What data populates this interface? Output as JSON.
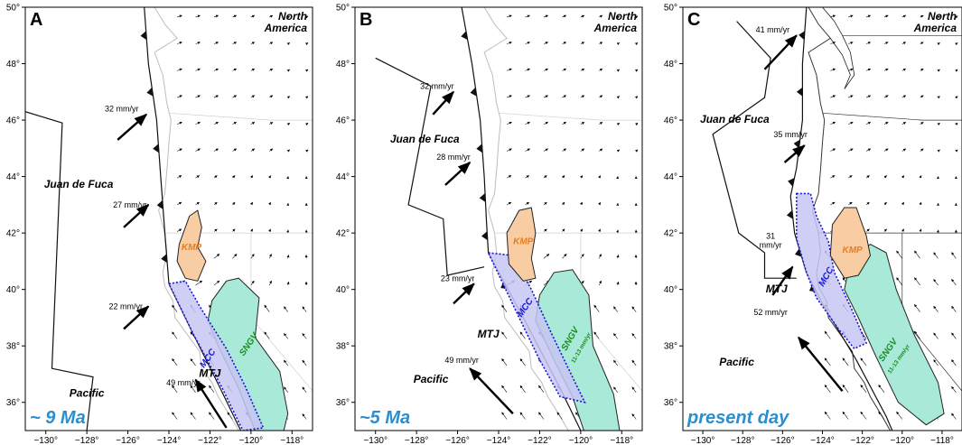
{
  "figure": {
    "axes": {
      "lon_ticks": [
        "−130°",
        "−128°",
        "−126°",
        "−124°",
        "−122°",
        "−120°",
        "−118°"
      ],
      "lat_ticks": [
        "36°",
        "38°",
        "40°",
        "42°",
        "44°",
        "46°",
        "48°",
        "50°"
      ],
      "lon_range": [
        -131,
        -117
      ],
      "lat_range": [
        35,
        50
      ]
    },
    "panels": [
      {
        "id": "A",
        "letter": "A",
        "age": "~ 9 Ma",
        "region_labels": {
          "north_america": "North\nAmerica",
          "juan_de_fuca": "Juan de Fuca",
          "pacific": "Pacific"
        },
        "blocks": {
          "kmp": "KMP",
          "mcc": "MCC",
          "sngv": "SNGV",
          "mtj": "MTJ"
        },
        "plate_rates": [
          {
            "text": "32 mm/yr",
            "lon": -126.3,
            "lat": 46.3
          },
          {
            "text": "27 mm/yr",
            "lon": -125.9,
            "lat": 42.9
          },
          {
            "text": "22 mm/yr",
            "lon": -126.1,
            "lat": 39.3
          },
          {
            "text": "49 mm/yr",
            "lon": -123.3,
            "lat": 36.6
          }
        ]
      },
      {
        "id": "B",
        "letter": "B",
        "age": "~5 Ma",
        "region_labels": {
          "north_america": "North\nAmerica",
          "juan_de_fuca": "Juan de Fuca",
          "pacific": "Pacific"
        },
        "blocks": {
          "kmp": "KMP",
          "mcc": "MCC",
          "sngv": "SNGV",
          "sngv_rate": "11-13 mm/yr",
          "mtj": "MTJ"
        },
        "plate_rates": [
          {
            "text": "32 mm/yr",
            "lon": -127.0,
            "lat": 47.1
          },
          {
            "text": "28 mm/yr",
            "lon": -126.2,
            "lat": 44.6
          },
          {
            "text": "23 mm/yr",
            "lon": -126.0,
            "lat": 40.3
          },
          {
            "text": "49 mm/yr",
            "lon": -125.8,
            "lat": 37.4
          }
        ]
      },
      {
        "id": "C",
        "letter": "C",
        "age": "present day",
        "region_labels": {
          "north_america": "North\nAmerica",
          "juan_de_fuca": "Juan de Fuca",
          "pacific": "Pacific"
        },
        "blocks": {
          "kmp": "KMP",
          "mcc": "MCC",
          "sngv": "SNGV",
          "sngv_rate": "11-13 mm/yr",
          "mtj": "MTJ"
        },
        "plate_rates": [
          {
            "text": "41 mm/yr",
            "lon": -126.5,
            "lat": 49.1
          },
          {
            "text": "35 mm/yr",
            "lon": -125.6,
            "lat": 45.4
          },
          {
            "text": "31\nmm/yr",
            "lon": -126.6,
            "lat": 41.8
          },
          {
            "text": "52 mm/yr",
            "lon": -126.6,
            "lat": 39.1
          }
        ]
      }
    ],
    "colors": {
      "kmp_fill": "#f8cda4",
      "mcc_fill": "#c7c6f3",
      "mcc_stroke": "#1515d6",
      "sngv_fill": "#a9e9d8",
      "sngv_text": "#1c8d22",
      "kmp_text": "#e87d1c",
      "age_text": "#2a8fd0",
      "boundary": "#111111",
      "coast": "#bdbdbd"
    }
  }
}
